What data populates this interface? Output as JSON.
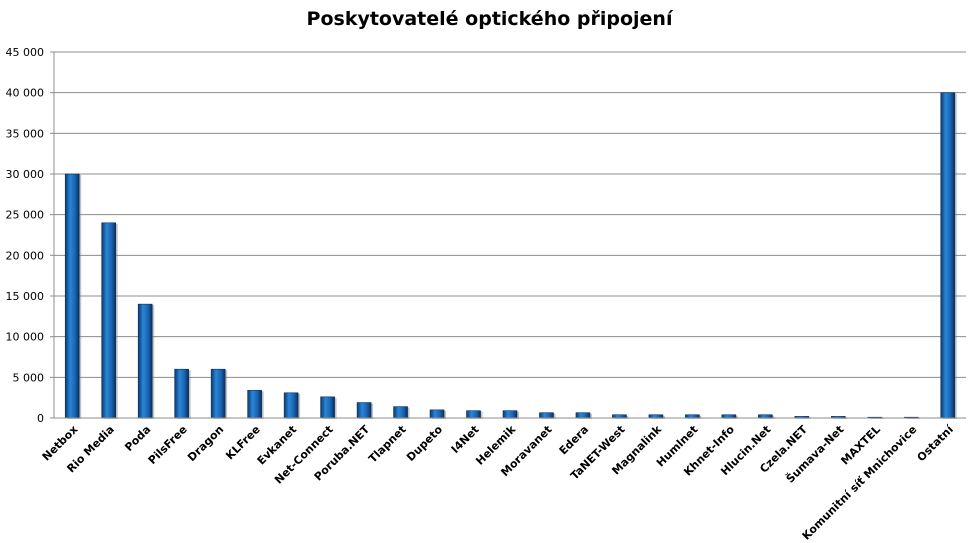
{
  "chart_data": {
    "type": "bar",
    "title": "Poskytovatelé optického připojení",
    "xlabel": "",
    "ylabel": "",
    "ylim": [
      0,
      45000
    ],
    "yticks": [
      0,
      5000,
      10000,
      15000,
      20000,
      25000,
      30000,
      35000,
      40000,
      45000
    ],
    "ytick_labels": [
      "0",
      "5 000",
      "10 000",
      "15 000",
      "20 000",
      "25 000",
      "30 000",
      "35 000",
      "40 000",
      "45 000"
    ],
    "grid": true,
    "legend": "none",
    "bar_color": "#1f6fc0",
    "categories": [
      "Netbox",
      "Rio Media",
      "Poda",
      "PilsFree",
      "Dragon",
      "KLFree",
      "Evkanet",
      "Net-Connect",
      "Poruba.NET",
      "Tlapnet",
      "Dupeto",
      "I4Net",
      "Helemik",
      "Moravanet",
      "Edera",
      "TaNET-West",
      "Magnalink",
      "Humlnet",
      "Khnet-Info",
      "Hlucin.Net",
      "Czela.NET",
      "Šumava-Net",
      "MAXTEL",
      "Komunitní síť Mnichovice",
      "Ostatní"
    ],
    "values": [
      30000,
      24000,
      14000,
      6000,
      6000,
      3400,
      3100,
      2600,
      1900,
      1400,
      1000,
      900,
      900,
      650,
      650,
      400,
      400,
      400,
      400,
      400,
      200,
      200,
      80,
      50,
      40000
    ]
  }
}
